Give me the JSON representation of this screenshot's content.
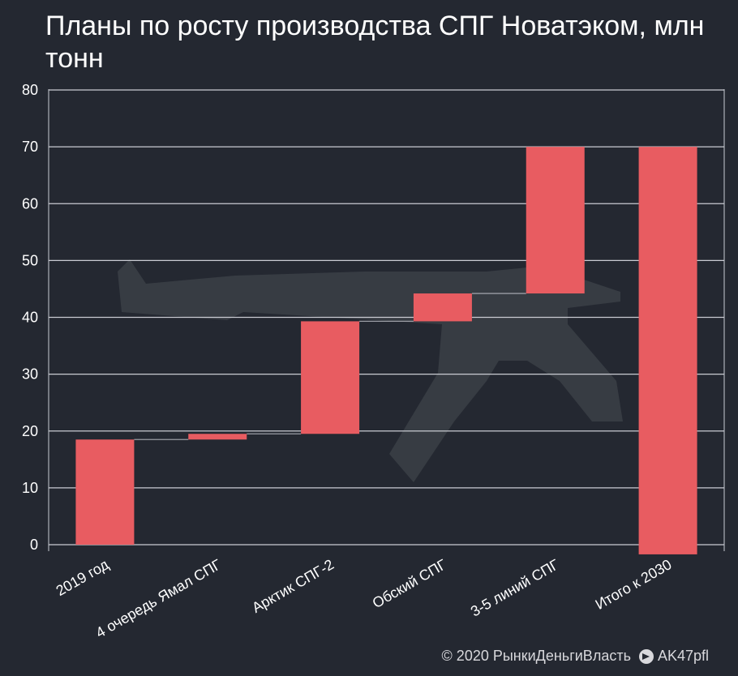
{
  "title": "Планы по росту производства СПГ Новатэком, млн тонн",
  "credits": {
    "copyright": "© 2020  РынкиДеньгиВласть",
    "telegram": "AK47pfl"
  },
  "colors": {
    "background": "#242831",
    "bar": "#e85c61",
    "grid": "#c9cbd2",
    "connector": "#9a9ca4"
  },
  "chart_data": {
    "type": "bar",
    "subtype": "waterfall",
    "categories": [
      "2019 год",
      "4 очередь Ямал СПГ",
      "Арктик СПГ-2",
      "Обский СПГ",
      "3-5 линий СПГ",
      "Итого к 2030"
    ],
    "bars": [
      {
        "start": 0,
        "end": 18.5
      },
      {
        "start": 18.5,
        "end": 19.5
      },
      {
        "start": 19.5,
        "end": 39.3
      },
      {
        "start": 39.3,
        "end": 44.2
      },
      {
        "start": 44.2,
        "end": 70
      },
      {
        "start": -1.7,
        "end": 70
      }
    ],
    "yticks": [
      0,
      10,
      20,
      30,
      40,
      50,
      60,
      70,
      80
    ],
    "ylim": [
      -2,
      80
    ],
    "grid": true
  }
}
